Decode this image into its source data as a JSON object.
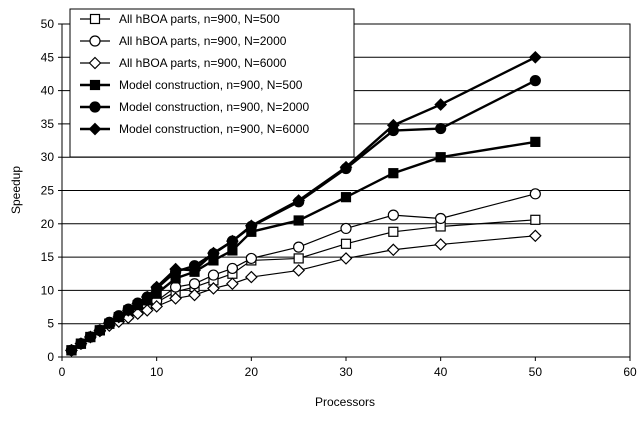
{
  "chart_data": {
    "type": "line",
    "xlabel": "Processors",
    "ylabel": "Speedup",
    "xlim": [
      0,
      60
    ],
    "ylim": [
      0,
      50
    ],
    "xticks": [
      0,
      10,
      20,
      30,
      40,
      50,
      60
    ],
    "yticks": [
      0,
      5,
      10,
      15,
      20,
      25,
      30,
      35,
      40,
      45,
      50
    ],
    "grid": "horizontal",
    "legend_position": "top-left",
    "series": [
      {
        "name": "All hBOA parts, n=900, N=500",
        "marker": "square-open",
        "x": [
          1,
          2,
          3,
          4,
          5,
          6,
          7,
          8,
          9,
          10,
          12,
          14,
          16,
          18,
          20,
          25,
          30,
          35,
          40,
          50
        ],
        "y": [
          1,
          2,
          3,
          4,
          5,
          5.7,
          6.4,
          7,
          7.6,
          8.2,
          9.8,
          10.5,
          11.5,
          12.5,
          14.5,
          14.8,
          17,
          18.8,
          19.6,
          20.6
        ]
      },
      {
        "name": "All hBOA parts, n=900, N=2000",
        "marker": "circle-open",
        "x": [
          1,
          2,
          3,
          4,
          5,
          6,
          7,
          8,
          9,
          10,
          12,
          14,
          16,
          18,
          20,
          25,
          30,
          35,
          40,
          50
        ],
        "y": [
          1,
          2,
          3,
          4,
          5,
          5.8,
          6.5,
          7.2,
          7.8,
          8.4,
          10.5,
          11,
          12.3,
          13.3,
          14.8,
          16.5,
          19.3,
          21.3,
          20.8,
          24.5
        ]
      },
      {
        "name": "All hBOA parts, n=900, N=6000",
        "marker": "diamond-open",
        "x": [
          1,
          2,
          3,
          4,
          5,
          6,
          7,
          8,
          9,
          10,
          12,
          14,
          16,
          18,
          20,
          25,
          30,
          35,
          40,
          50
        ],
        "y": [
          1,
          2,
          3,
          3.9,
          4.7,
          5.3,
          5.9,
          6.5,
          7,
          7.6,
          8.8,
          9.3,
          10.3,
          11,
          12,
          13,
          14.8,
          16.1,
          16.9,
          18.2
        ]
      },
      {
        "name": "Model construction, n=900, N=500",
        "marker": "square-filled",
        "x": [
          1,
          2,
          3,
          4,
          5,
          6,
          7,
          8,
          9,
          10,
          12,
          14,
          16,
          18,
          20,
          25,
          30,
          35,
          40,
          50
        ],
        "y": [
          1,
          2,
          3,
          4,
          5,
          6,
          7,
          7.8,
          8.5,
          9.5,
          11.8,
          12.8,
          14.5,
          16,
          18.8,
          20.5,
          24,
          27.6,
          30,
          32.3
        ]
      },
      {
        "name": "Model construction, n=900, N=2000",
        "marker": "circle-filled",
        "x": [
          1,
          2,
          3,
          4,
          5,
          6,
          7,
          8,
          9,
          10,
          12,
          14,
          16,
          18,
          20,
          25,
          30,
          35,
          40,
          50
        ],
        "y": [
          1,
          2,
          3,
          4,
          5.2,
          6.2,
          7.2,
          8.1,
          9,
          10.3,
          12.8,
          13.7,
          15.5,
          17.4,
          19.6,
          23.3,
          28.3,
          34,
          34.3,
          41.5
        ]
      },
      {
        "name": "Model construction, n=900, N=6000",
        "marker": "diamond-filled",
        "x": [
          1,
          2,
          3,
          4,
          5,
          6,
          7,
          8,
          9,
          10,
          12,
          14,
          16,
          18,
          20,
          25,
          30,
          35,
          40,
          50
        ],
        "y": [
          1,
          2,
          3,
          4,
          5.1,
          6,
          7,
          8,
          9,
          10.5,
          13.2,
          13,
          15.6,
          17.4,
          19.7,
          23.5,
          28.5,
          34.8,
          37.9,
          45
        ]
      }
    ]
  }
}
